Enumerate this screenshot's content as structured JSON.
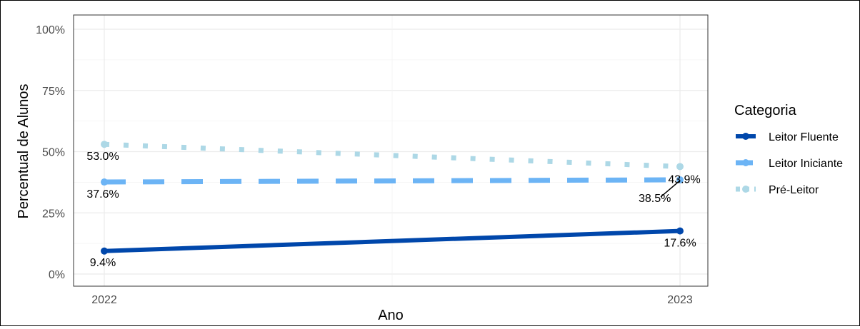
{
  "chart_data": {
    "type": "line",
    "xlabel": "Ano",
    "ylabel": "Percentual de Alunos",
    "x": [
      "2022",
      "2023"
    ],
    "ylim": [
      0,
      100
    ],
    "yticks": [
      "0%",
      "25%",
      "50%",
      "75%",
      "100%"
    ],
    "grid": true,
    "legend": {
      "title": "Categoria",
      "placement": "right"
    },
    "series": [
      {
        "name": "Leitor Fluente",
        "values": [
          9.4,
          17.6
        ],
        "labels": [
          "9.4%",
          "17.6%"
        ],
        "color": "#0047ab",
        "line_style": "solid"
      },
      {
        "name": "Leitor Iniciante",
        "values": [
          37.6,
          38.5
        ],
        "labels": [
          "37.6%",
          "38.5%"
        ],
        "color": "#6cb4f5",
        "line_style": "dashed"
      },
      {
        "name": "Pré-Leitor",
        "values": [
          53.0,
          43.9
        ],
        "labels": [
          "53.0%",
          "43.9%"
        ],
        "color": "#add8e6",
        "line_style": "dotted"
      }
    ]
  }
}
